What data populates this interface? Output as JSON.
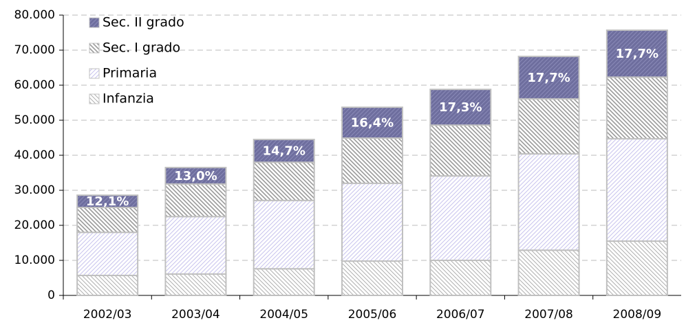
{
  "chart_data": {
    "type": "stacked_bar",
    "categories": [
      "2002/03",
      "2003/04",
      "2004/05",
      "2005/06",
      "2006/07",
      "2007/08",
      "2008/09"
    ],
    "series": [
      {
        "name": "Infanzia",
        "color": "#b0b0b0",
        "values": [
          5700,
          6100,
          7600,
          9800,
          10000,
          12900,
          15500
        ]
      },
      {
        "name": "Primaria",
        "color": "#c8c4ee",
        "values": [
          12300,
          16400,
          19500,
          22200,
          24100,
          27500,
          29200
        ]
      },
      {
        "name": "Sec. I grado",
        "color": "#9a9a9a",
        "values": [
          7100,
          9300,
          10900,
          12900,
          14500,
          15700,
          17600
        ]
      },
      {
        "name": "Sec. II grado",
        "color": "#6e6e9e",
        "values": [
          3500,
          4700,
          6500,
          8800,
          10200,
          12100,
          13400
        ]
      }
    ],
    "annotations": [
      "12,1%",
      "13,0%",
      "14,7%",
      "16,4%",
      "17,3%",
      "17,7%",
      "17,7%"
    ],
    "ylim": [
      0,
      80000
    ],
    "yticks": [
      0,
      {
        "value": 10000,
        "label": "10.000"
      },
      {
        "value": 20000,
        "label": "20.000"
      },
      {
        "value": 30000,
        "label": "30.000"
      },
      {
        "value": 40000,
        "label": "40.000"
      },
      {
        "value": 50000,
        "label": "50.000"
      },
      {
        "value": 60000,
        "label": "60.000"
      },
      {
        "value": 70000,
        "label": "70.000"
      },
      {
        "value": 80000,
        "label": "80.000"
      }
    ],
    "grid": true,
    "legend": "upper left"
  }
}
